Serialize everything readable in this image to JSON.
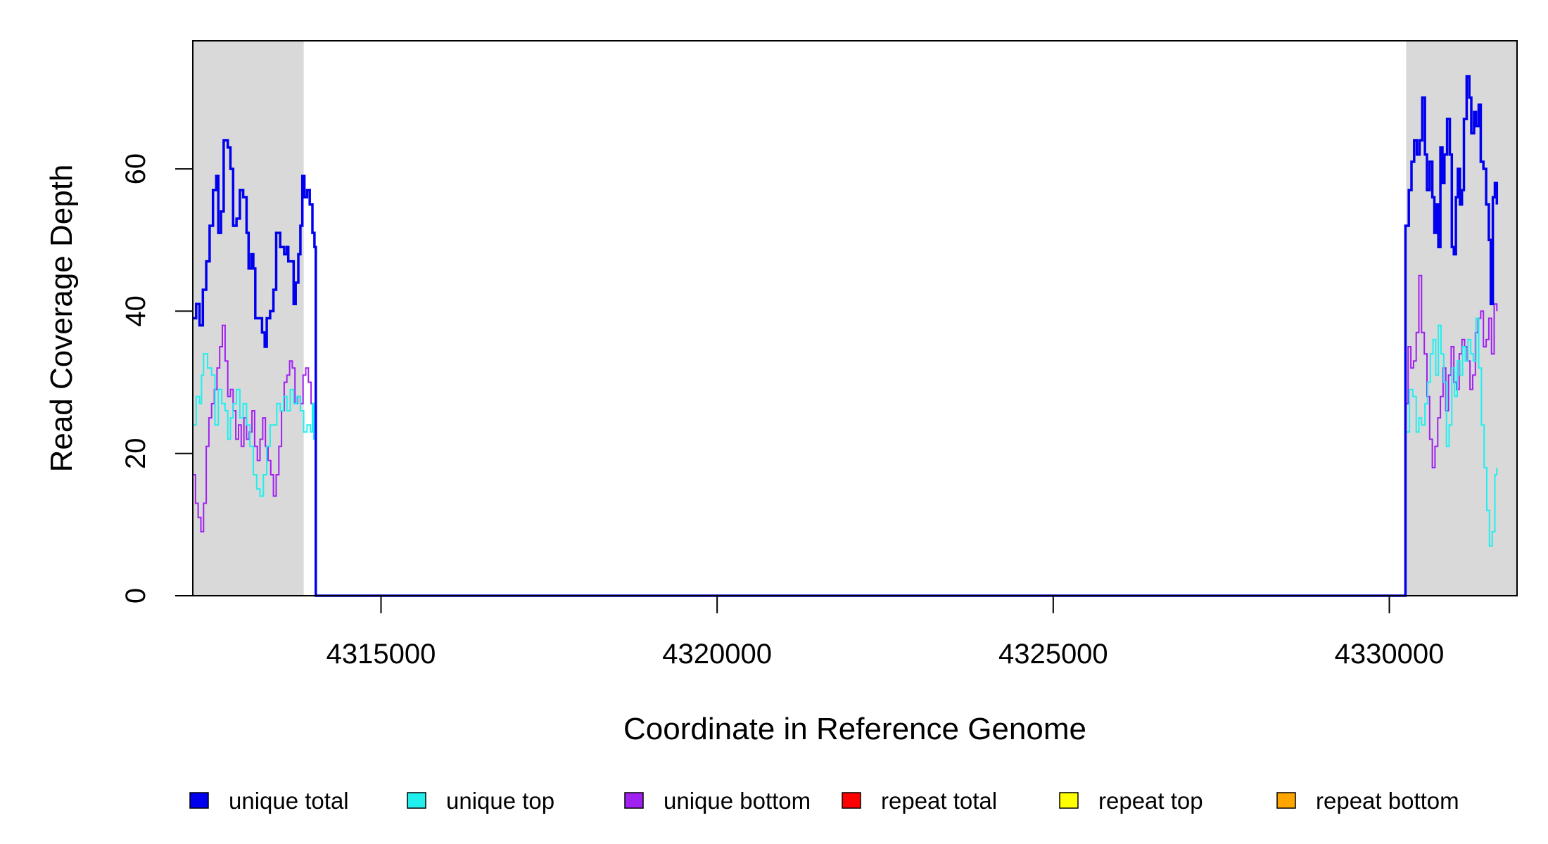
{
  "chart_data": {
    "type": "line",
    "title": "",
    "xlabel": "Coordinate in Reference Genome",
    "ylabel": "Read Coverage Depth",
    "xlim": [
      4312200,
      4331900
    ],
    "ylim": [
      0,
      78
    ],
    "x_ticks": [
      4315000,
      4320000,
      4325000,
      4330000
    ],
    "x_tick_labels": [
      "4315000",
      "4320000",
      "4325000",
      "4330000"
    ],
    "y_ticks": [
      0,
      20,
      40,
      60
    ],
    "y_tick_labels": [
      "0",
      "20",
      "40",
      "60"
    ],
    "grid": false,
    "legend_position": "bottom",
    "shaded_regions": [
      [
        4312200,
        4313850
      ],
      [
        4330250,
        4331900
      ]
    ],
    "shaded_color": "#d9d9d9",
    "series": [
      {
        "name": "unique total",
        "color": "#0000ee",
        "points": [
          [
            4312200,
            39
          ],
          [
            4312250,
            41
          ],
          [
            4312300,
            38
          ],
          [
            4312350,
            43
          ],
          [
            4312400,
            47
          ],
          [
            4312450,
            52
          ],
          [
            4312500,
            57
          ],
          [
            4312550,
            59
          ],
          [
            4312580,
            51
          ],
          [
            4312620,
            54
          ],
          [
            4312660,
            64
          ],
          [
            4312720,
            63
          ],
          [
            4312760,
            60
          ],
          [
            4312800,
            52
          ],
          [
            4312850,
            53
          ],
          [
            4312900,
            57
          ],
          [
            4312950,
            56
          ],
          [
            4313000,
            51
          ],
          [
            4313030,
            46
          ],
          [
            4313070,
            48
          ],
          [
            4313100,
            46
          ],
          [
            4313130,
            39
          ],
          [
            4313180,
            39
          ],
          [
            4313230,
            37
          ],
          [
            4313270,
            35
          ],
          [
            4313300,
            39
          ],
          [
            4313350,
            40
          ],
          [
            4313400,
            43
          ],
          [
            4313440,
            51
          ],
          [
            4313500,
            49
          ],
          [
            4313560,
            48
          ],
          [
            4313600,
            49
          ],
          [
            4313620,
            47
          ],
          [
            4313680,
            47
          ],
          [
            4313700,
            41
          ],
          [
            4313730,
            44
          ],
          [
            4313770,
            48
          ],
          [
            4313800,
            52
          ],
          [
            4313830,
            59
          ],
          [
            4313860,
            56
          ],
          [
            4313900,
            57
          ],
          [
            4313940,
            55
          ],
          [
            4313980,
            51
          ],
          [
            4314010,
            49
          ],
          [
            4314030,
            0
          ],
          [
            4330230,
            0
          ],
          [
            4330240,
            52
          ],
          [
            4330290,
            57
          ],
          [
            4330330,
            61
          ],
          [
            4330370,
            64
          ],
          [
            4330410,
            62
          ],
          [
            4330450,
            64
          ],
          [
            4330490,
            70
          ],
          [
            4330530,
            62
          ],
          [
            4330560,
            57
          ],
          [
            4330600,
            61
          ],
          [
            4330640,
            56
          ],
          [
            4330670,
            51
          ],
          [
            4330700,
            55
          ],
          [
            4330730,
            49
          ],
          [
            4330760,
            63
          ],
          [
            4330790,
            58
          ],
          [
            4330820,
            62
          ],
          [
            4330860,
            67
          ],
          [
            4330900,
            62
          ],
          [
            4330930,
            49
          ],
          [
            4330960,
            48
          ],
          [
            4330990,
            56
          ],
          [
            4331020,
            60
          ],
          [
            4331050,
            55
          ],
          [
            4331080,
            57
          ],
          [
            4331110,
            67
          ],
          [
            4331150,
            73
          ],
          [
            4331190,
            70
          ],
          [
            4331220,
            65
          ],
          [
            4331260,
            68
          ],
          [
            4331290,
            66
          ],
          [
            4331330,
            69
          ],
          [
            4331360,
            61
          ],
          [
            4331400,
            60
          ],
          [
            4331440,
            55
          ],
          [
            4331480,
            50
          ],
          [
            4331510,
            41
          ],
          [
            4331540,
            56
          ],
          [
            4331570,
            58
          ],
          [
            4331600,
            55
          ]
        ]
      },
      {
        "name": "unique top",
        "color": "#22eeee",
        "points": [
          [
            4312200,
            24
          ],
          [
            4312250,
            28
          ],
          [
            4312300,
            27
          ],
          [
            4312330,
            31
          ],
          [
            4312360,
            34
          ],
          [
            4312420,
            32
          ],
          [
            4312480,
            31
          ],
          [
            4312530,
            24
          ],
          [
            4312580,
            29
          ],
          [
            4312630,
            27
          ],
          [
            4312680,
            26
          ],
          [
            4312720,
            22
          ],
          [
            4312760,
            25
          ],
          [
            4312800,
            27
          ],
          [
            4312850,
            29
          ],
          [
            4312900,
            25
          ],
          [
            4312950,
            27
          ],
          [
            4313000,
            24
          ],
          [
            4313050,
            21
          ],
          [
            4313100,
            17
          ],
          [
            4313150,
            15
          ],
          [
            4313200,
            14
          ],
          [
            4313250,
            17
          ],
          [
            4313300,
            21
          ],
          [
            4313350,
            24
          ],
          [
            4313400,
            24
          ],
          [
            4313450,
            27
          ],
          [
            4313500,
            26
          ],
          [
            4313550,
            28
          ],
          [
            4313600,
            26
          ],
          [
            4313650,
            29
          ],
          [
            4313700,
            27
          ],
          [
            4313750,
            28
          ],
          [
            4313800,
            26
          ],
          [
            4313850,
            23
          ],
          [
            4313900,
            24
          ],
          [
            4313950,
            23
          ],
          [
            4313980,
            27
          ],
          [
            4314000,
            22
          ],
          [
            4314030,
            0
          ],
          [
            4330230,
            0
          ],
          [
            4330240,
            23
          ],
          [
            4330300,
            29
          ],
          [
            4330350,
            28
          ],
          [
            4330400,
            23
          ],
          [
            4330440,
            25
          ],
          [
            4330480,
            24
          ],
          [
            4330530,
            27
          ],
          [
            4330570,
            30
          ],
          [
            4330610,
            34
          ],
          [
            4330650,
            36
          ],
          [
            4330690,
            31
          ],
          [
            4330730,
            38
          ],
          [
            4330770,
            34
          ],
          [
            4330810,
            30
          ],
          [
            4330850,
            21
          ],
          [
            4330890,
            24
          ],
          [
            4330930,
            32
          ],
          [
            4330970,
            28
          ],
          [
            4331010,
            33
          ],
          [
            4331050,
            31
          ],
          [
            4331090,
            35
          ],
          [
            4331130,
            33
          ],
          [
            4331170,
            36
          ],
          [
            4331210,
            34
          ],
          [
            4331250,
            33
          ],
          [
            4331290,
            39
          ],
          [
            4331330,
            32
          ],
          [
            4331370,
            24
          ],
          [
            4331410,
            18
          ],
          [
            4331450,
            12
          ],
          [
            4331490,
            7
          ],
          [
            4331530,
            9
          ],
          [
            4331570,
            17
          ],
          [
            4331600,
            18
          ]
        ]
      },
      {
        "name": "unique bottom",
        "color": "#a020f0",
        "points": [
          [
            4312200,
            17
          ],
          [
            4312240,
            13
          ],
          [
            4312280,
            11
          ],
          [
            4312320,
            9
          ],
          [
            4312360,
            13
          ],
          [
            4312400,
            21
          ],
          [
            4312440,
            25
          ],
          [
            4312480,
            27
          ],
          [
            4312520,
            29
          ],
          [
            4312560,
            32
          ],
          [
            4312600,
            35
          ],
          [
            4312640,
            38
          ],
          [
            4312680,
            33
          ],
          [
            4312720,
            28
          ],
          [
            4312760,
            29
          ],
          [
            4312800,
            26
          ],
          [
            4312840,
            22
          ],
          [
            4312880,
            24
          ],
          [
            4312920,
            21
          ],
          [
            4312960,
            25
          ],
          [
            4313000,
            22
          ],
          [
            4313040,
            23
          ],
          [
            4313080,
            26
          ],
          [
            4313120,
            21
          ],
          [
            4313160,
            19
          ],
          [
            4313200,
            22
          ],
          [
            4313240,
            25
          ],
          [
            4313280,
            21
          ],
          [
            4313320,
            19
          ],
          [
            4313360,
            17
          ],
          [
            4313400,
            14
          ],
          [
            4313440,
            17
          ],
          [
            4313480,
            21
          ],
          [
            4313520,
            26
          ],
          [
            4313560,
            30
          ],
          [
            4313600,
            31
          ],
          [
            4313640,
            33
          ],
          [
            4313680,
            32
          ],
          [
            4313720,
            27
          ],
          [
            4313760,
            28
          ],
          [
            4313800,
            27
          ],
          [
            4313840,
            31
          ],
          [
            4313880,
            32
          ],
          [
            4313920,
            30
          ],
          [
            4313960,
            27
          ],
          [
            4314000,
            24
          ],
          [
            4314030,
            0
          ],
          [
            4330230,
            0
          ],
          [
            4330240,
            27
          ],
          [
            4330280,
            35
          ],
          [
            4330320,
            32
          ],
          [
            4330360,
            33
          ],
          [
            4330400,
            37
          ],
          [
            4330440,
            45
          ],
          [
            4330480,
            37
          ],
          [
            4330520,
            34
          ],
          [
            4330560,
            28
          ],
          [
            4330600,
            22
          ],
          [
            4330640,
            18
          ],
          [
            4330680,
            21
          ],
          [
            4330720,
            25
          ],
          [
            4330760,
            28
          ],
          [
            4330800,
            32
          ],
          [
            4330840,
            26
          ],
          [
            4330880,
            31
          ],
          [
            4330920,
            35
          ],
          [
            4330960,
            30
          ],
          [
            4331000,
            29
          ],
          [
            4331040,
            34
          ],
          [
            4331080,
            36
          ],
          [
            4331120,
            35
          ],
          [
            4331160,
            33
          ],
          [
            4331200,
            29
          ],
          [
            4331240,
            31
          ],
          [
            4331280,
            37
          ],
          [
            4331320,
            39
          ],
          [
            4331360,
            40
          ],
          [
            4331400,
            35
          ],
          [
            4331440,
            36
          ],
          [
            4331480,
            39
          ],
          [
            4331520,
            34
          ],
          [
            4331560,
            41
          ],
          [
            4331600,
            40
          ]
        ]
      },
      {
        "name": "repeat total",
        "color": "#ff0000",
        "points": [
          [
            4312200,
            0
          ],
          [
            4331900,
            0
          ]
        ]
      },
      {
        "name": "repeat top",
        "color": "#ffff00",
        "points": [
          [
            4312200,
            0
          ],
          [
            4331900,
            0
          ]
        ]
      },
      {
        "name": "repeat bottom",
        "color": "#ffa500",
        "points": [
          [
            4312200,
            0
          ],
          [
            4331900,
            0
          ]
        ]
      }
    ]
  }
}
